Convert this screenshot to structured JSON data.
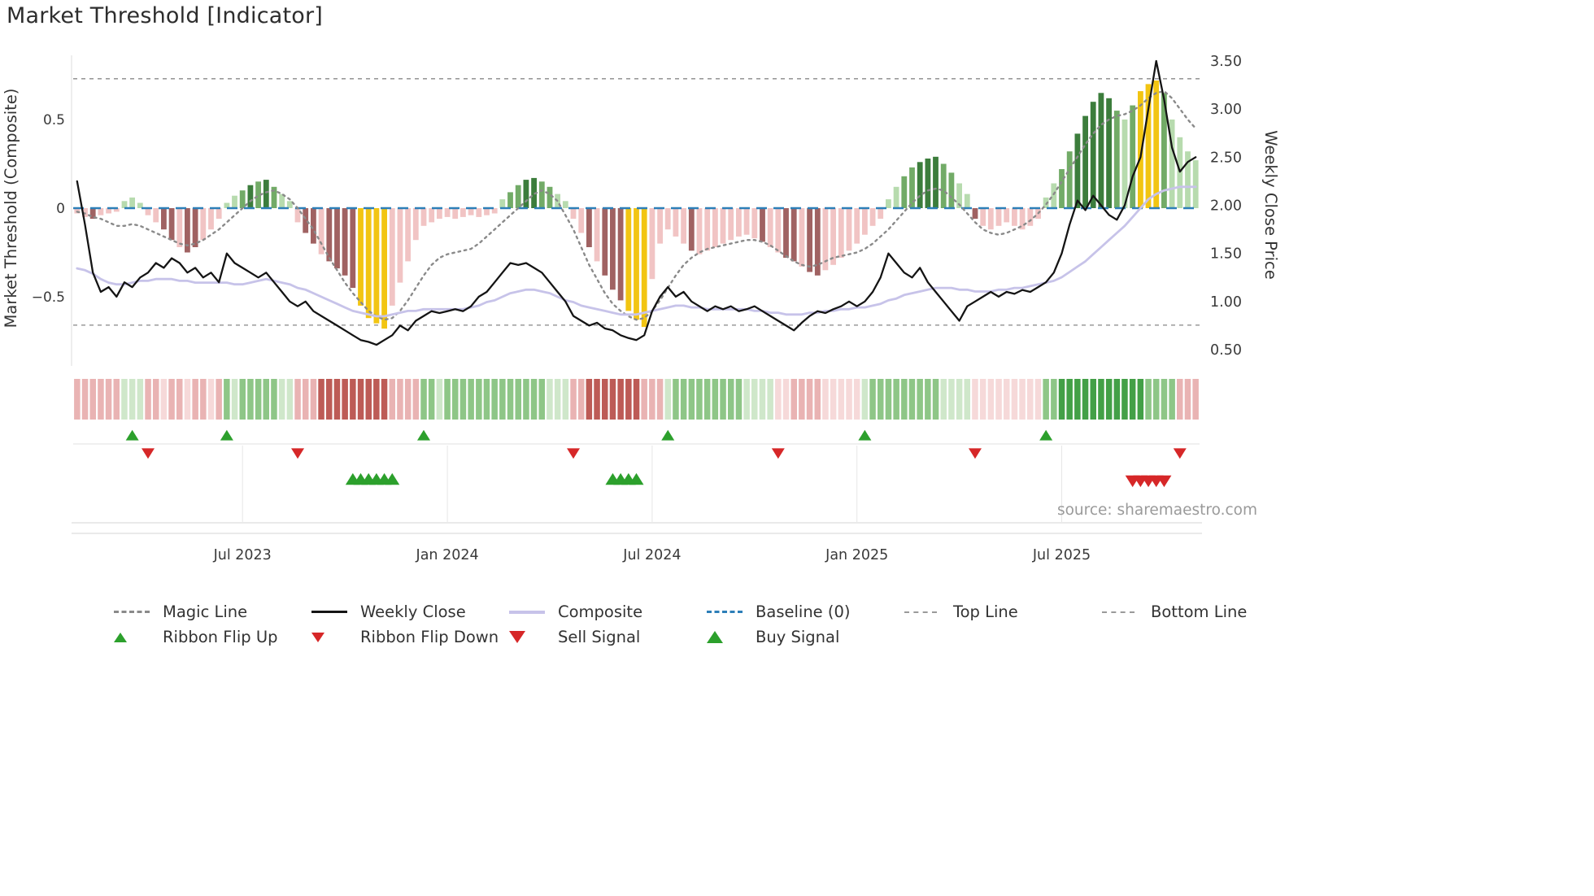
{
  "title": "Market Threshold [Indicator]",
  "source_credit": "source: sharemaestro.com",
  "axes": {
    "left_title": "Market Threshold (Composite)",
    "right_title": "Weekly Close Price"
  },
  "legend": {
    "row1": [
      {
        "label": "Magic Line"
      },
      {
        "label": "Weekly Close"
      },
      {
        "label": "Composite"
      },
      {
        "label": "Baseline (0)"
      },
      {
        "label": "Top Line"
      },
      {
        "label": "Bottom Line"
      }
    ],
    "row2": [
      {
        "label": "Ribbon Flip Up"
      },
      {
        "label": "Ribbon Flip Down"
      },
      {
        "label": "Sell Signal"
      },
      {
        "label": "Buy Signal"
      }
    ]
  },
  "chart_data": {
    "type": "bar",
    "title": "Market Threshold [Indicator]",
    "frequency": "weekly",
    "n_points": 143,
    "left_axis": {
      "label": "Market Threshold (Composite)",
      "tick_values": [
        0.5,
        0,
        -0.5
      ],
      "tick_labels": [
        "0.5",
        "0",
        "−0.5"
      ],
      "range": [
        -0.85,
        0.88
      ]
    },
    "right_axis": {
      "label": "Weekly Close Price",
      "tick_values": [
        3.5,
        3.0,
        2.5,
        2.0,
        1.5,
        1.0,
        0.5
      ],
      "tick_labels": [
        "3.50",
        "3.00",
        "2.50",
        "2.00",
        "1.50",
        "1.00",
        "0.50"
      ],
      "range": [
        0.3,
        3.55
      ]
    },
    "x_axis": {
      "tick_indices": [
        21,
        47,
        73,
        99,
        125
      ],
      "tick_labels": [
        "Jul 2023",
        "Jan 2024",
        "Jul 2024",
        "Jan 2025",
        "Jul 2025"
      ]
    },
    "reference_lines": {
      "baseline": 0,
      "top_line": 0.73,
      "bottom_line": -0.66
    },
    "bar_palette": {
      "lp": "#f1c4c4",
      "dr": "#a06262",
      "lg": "#b7dbae",
      "mg": "#72ab67",
      "dg": "#3c7d3c",
      "y": "#f2c512"
    },
    "ribbon_palette": {
      "p1": "#f6d9d9",
      "p2": "#e9b3b3",
      "p3": "#bd5b56",
      "g1": "#cfe7ca",
      "g2": "#8ec687",
      "g3": "#43a047"
    },
    "line_colors": {
      "magic": "#8a8a8a",
      "weekly_close": "#141414",
      "composite": "#c7c3e9",
      "baseline": "#2d7fb8",
      "top_bottom": "#9a9a9a"
    },
    "signal_colors": {
      "up": "#2ca02c",
      "down": "#d62728"
    },
    "bars": {
      "values": [
        -0.03,
        -0.05,
        -0.06,
        -0.04,
        -0.03,
        -0.02,
        0.04,
        0.06,
        0.03,
        -0.04,
        -0.08,
        -0.12,
        -0.18,
        -0.22,
        -0.25,
        -0.22,
        -0.18,
        -0.12,
        -0.06,
        0.03,
        0.07,
        0.1,
        0.13,
        0.15,
        0.16,
        0.12,
        0.08,
        0.04,
        -0.08,
        -0.14,
        -0.2,
        -0.26,
        -0.3,
        -0.34,
        -0.38,
        -0.45,
        -0.55,
        -0.62,
        -0.65,
        -0.68,
        -0.55,
        -0.42,
        -0.3,
        -0.18,
        -0.1,
        -0.08,
        -0.06,
        -0.05,
        -0.06,
        -0.05,
        -0.04,
        -0.05,
        -0.04,
        -0.03,
        0.05,
        0.09,
        0.13,
        0.16,
        0.17,
        0.15,
        0.12,
        0.08,
        0.04,
        -0.06,
        -0.14,
        -0.22,
        -0.3,
        -0.38,
        -0.46,
        -0.52,
        -0.58,
        -0.63,
        -0.67,
        -0.4,
        -0.2,
        -0.12,
        -0.16,
        -0.2,
        -0.24,
        -0.26,
        -0.24,
        -0.22,
        -0.2,
        -0.18,
        -0.16,
        -0.15,
        -0.17,
        -0.19,
        -0.22,
        -0.25,
        -0.28,
        -0.3,
        -0.33,
        -0.36,
        -0.38,
        -0.35,
        -0.32,
        -0.28,
        -0.24,
        -0.2,
        -0.15,
        -0.1,
        -0.06,
        0.05,
        0.12,
        0.18,
        0.23,
        0.26,
        0.28,
        0.29,
        0.25,
        0.2,
        0.14,
        0.08,
        -0.06,
        -0.1,
        -0.12,
        -0.1,
        -0.08,
        -0.1,
        -0.12,
        -0.1,
        -0.06,
        0.06,
        0.14,
        0.22,
        0.32,
        0.42,
        0.52,
        0.6,
        0.65,
        0.62,
        0.55,
        0.5,
        0.58,
        0.66,
        0.7,
        0.72,
        0.65,
        0.5,
        0.4,
        0.32,
        0.27
      ],
      "colors": [
        "lp",
        "lp",
        "dr",
        "lp",
        "lp",
        "lp",
        "lg",
        "lg",
        "lg",
        "lp",
        "lp",
        "dr",
        "dr",
        "lp",
        "dr",
        "dr",
        "lp",
        "lp",
        "lp",
        "lg",
        "lg",
        "mg",
        "dg",
        "mg",
        "dg",
        "mg",
        "lg",
        "lg",
        "lp",
        "dr",
        "dr",
        "lp",
        "dr",
        "dr",
        "dr",
        "dr",
        "y",
        "y",
        "y",
        "y",
        "lp",
        "lp",
        "lp",
        "lp",
        "lp",
        "lp",
        "lp",
        "lp",
        "lp",
        "lp",
        "lp",
        "lp",
        "lp",
        "lp",
        "lg",
        "mg",
        "mg",
        "dg",
        "dg",
        "mg",
        "mg",
        "lg",
        "lg",
        "lp",
        "lp",
        "dr",
        "lp",
        "dr",
        "dr",
        "dr",
        "y",
        "y",
        "y",
        "lp",
        "lp",
        "lp",
        "lp",
        "lp",
        "dr",
        "lp",
        "lp",
        "lp",
        "lp",
        "lp",
        "lp",
        "lp",
        "lp",
        "dr",
        "lp",
        "lp",
        "dr",
        "dr",
        "lp",
        "dr",
        "dr",
        "lp",
        "lp",
        "lp",
        "lp",
        "lp",
        "lp",
        "lp",
        "lp",
        "lg",
        "lg",
        "mg",
        "mg",
        "dg",
        "dg",
        "dg",
        "mg",
        "mg",
        "lg",
        "lg",
        "dr",
        "lp",
        "lp",
        "lp",
        "lp",
        "lp",
        "lp",
        "lp",
        "lp",
        "lg",
        "lg",
        "mg",
        "mg",
        "dg",
        "dg",
        "dg",
        "dg",
        "dg",
        "mg",
        "lg",
        "mg",
        "y",
        "y",
        "y",
        "mg",
        "lg",
        "lg",
        "lg",
        "lg"
      ]
    },
    "series": [
      {
        "name": "Weekly Close",
        "axis": "right",
        "values": [
          2.25,
          1.8,
          1.3,
          1.1,
          1.15,
          1.05,
          1.2,
          1.15,
          1.25,
          1.3,
          1.4,
          1.35,
          1.45,
          1.4,
          1.3,
          1.35,
          1.25,
          1.3,
          1.2,
          1.5,
          1.4,
          1.35,
          1.3,
          1.25,
          1.3,
          1.2,
          1.1,
          1.0,
          0.95,
          1.0,
          0.9,
          0.85,
          0.8,
          0.75,
          0.7,
          0.65,
          0.6,
          0.58,
          0.55,
          0.6,
          0.65,
          0.75,
          0.7,
          0.8,
          0.85,
          0.9,
          0.88,
          0.9,
          0.92,
          0.9,
          0.95,
          1.05,
          1.1,
          1.2,
          1.3,
          1.4,
          1.38,
          1.4,
          1.35,
          1.3,
          1.2,
          1.1,
          1.0,
          0.85,
          0.8,
          0.75,
          0.78,
          0.72,
          0.7,
          0.65,
          0.62,
          0.6,
          0.65,
          0.9,
          1.05,
          1.15,
          1.05,
          1.1,
          1.0,
          0.95,
          0.9,
          0.95,
          0.92,
          0.95,
          0.9,
          0.92,
          0.95,
          0.9,
          0.85,
          0.8,
          0.75,
          0.7,
          0.78,
          0.85,
          0.9,
          0.88,
          0.92,
          0.95,
          1.0,
          0.95,
          1.0,
          1.1,
          1.25,
          1.5,
          1.4,
          1.3,
          1.25,
          1.35,
          1.2,
          1.1,
          1.0,
          0.9,
          0.8,
          0.95,
          1.0,
          1.05,
          1.1,
          1.05,
          1.1,
          1.08,
          1.12,
          1.1,
          1.15,
          1.2,
          1.3,
          1.5,
          1.8,
          2.05,
          1.95,
          2.1,
          2.0,
          1.9,
          1.85,
          2.0,
          2.3,
          2.5,
          3.0,
          3.5,
          3.1,
          2.6,
          2.35,
          2.45,
          2.5
        ]
      },
      {
        "name": "Composite",
        "axis": "left",
        "values": [
          -0.34,
          -0.35,
          -0.37,
          -0.4,
          -0.42,
          -0.43,
          -0.43,
          -0.42,
          -0.41,
          -0.41,
          -0.4,
          -0.4,
          -0.4,
          -0.41,
          -0.41,
          -0.42,
          -0.42,
          -0.42,
          -0.42,
          -0.42,
          -0.43,
          -0.43,
          -0.42,
          -0.41,
          -0.4,
          -0.41,
          -0.42,
          -0.43,
          -0.45,
          -0.46,
          -0.48,
          -0.5,
          -0.52,
          -0.54,
          -0.56,
          -0.58,
          -0.59,
          -0.6,
          -0.61,
          -0.61,
          -0.6,
          -0.59,
          -0.58,
          -0.58,
          -0.57,
          -0.57,
          -0.57,
          -0.57,
          -0.57,
          -0.57,
          -0.56,
          -0.55,
          -0.53,
          -0.52,
          -0.5,
          -0.48,
          -0.47,
          -0.46,
          -0.46,
          -0.47,
          -0.48,
          -0.5,
          -0.52,
          -0.53,
          -0.55,
          -0.56,
          -0.57,
          -0.58,
          -0.59,
          -0.6,
          -0.6,
          -0.6,
          -0.59,
          -0.58,
          -0.57,
          -0.56,
          -0.55,
          -0.55,
          -0.56,
          -0.56,
          -0.57,
          -0.57,
          -0.57,
          -0.57,
          -0.57,
          -0.57,
          -0.58,
          -0.58,
          -0.59,
          -0.59,
          -0.6,
          -0.6,
          -0.6,
          -0.59,
          -0.59,
          -0.58,
          -0.58,
          -0.57,
          -0.57,
          -0.56,
          -0.56,
          -0.55,
          -0.54,
          -0.52,
          -0.51,
          -0.49,
          -0.48,
          -0.47,
          -0.46,
          -0.45,
          -0.45,
          -0.45,
          -0.46,
          -0.46,
          -0.47,
          -0.47,
          -0.47,
          -0.46,
          -0.46,
          -0.45,
          -0.45,
          -0.44,
          -0.43,
          -0.42,
          -0.41,
          -0.39,
          -0.36,
          -0.33,
          -0.3,
          -0.26,
          -0.22,
          -0.18,
          -0.14,
          -0.1,
          -0.05,
          0.0,
          0.05,
          0.08,
          0.1,
          0.11,
          0.12,
          0.12,
          0.12
        ]
      },
      {
        "name": "Magic Line",
        "axis": "left",
        "values": [
          -0.02,
          -0.03,
          -0.05,
          -0.06,
          -0.08,
          -0.1,
          -0.1,
          -0.09,
          -0.1,
          -0.12,
          -0.14,
          -0.16,
          -0.18,
          -0.2,
          -0.21,
          -0.2,
          -0.18,
          -0.15,
          -0.12,
          -0.08,
          -0.04,
          0.0,
          0.04,
          0.07,
          0.09,
          0.1,
          0.08,
          0.05,
          0.0,
          -0.06,
          -0.12,
          -0.2,
          -0.28,
          -0.35,
          -0.42,
          -0.48,
          -0.53,
          -0.58,
          -0.61,
          -0.63,
          -0.62,
          -0.58,
          -0.52,
          -0.45,
          -0.38,
          -0.32,
          -0.28,
          -0.26,
          -0.25,
          -0.24,
          -0.23,
          -0.2,
          -0.16,
          -0.12,
          -0.08,
          -0.04,
          0.0,
          0.04,
          0.08,
          0.1,
          0.08,
          0.04,
          -0.04,
          -0.12,
          -0.22,
          -0.32,
          -0.4,
          -0.48,
          -0.54,
          -0.58,
          -0.61,
          -0.63,
          -0.62,
          -0.58,
          -0.52,
          -0.45,
          -0.38,
          -0.32,
          -0.28,
          -0.25,
          -0.23,
          -0.22,
          -0.21,
          -0.2,
          -0.19,
          -0.18,
          -0.18,
          -0.19,
          -0.21,
          -0.24,
          -0.27,
          -0.3,
          -0.32,
          -0.33,
          -0.32,
          -0.3,
          -0.28,
          -0.27,
          -0.26,
          -0.25,
          -0.23,
          -0.2,
          -0.16,
          -0.12,
          -0.07,
          -0.02,
          0.03,
          0.07,
          0.1,
          0.11,
          0.1,
          0.06,
          0.02,
          -0.03,
          -0.08,
          -0.12,
          -0.14,
          -0.15,
          -0.14,
          -0.12,
          -0.1,
          -0.07,
          -0.03,
          0.02,
          0.08,
          0.15,
          0.22,
          0.29,
          0.36,
          0.42,
          0.47,
          0.5,
          0.52,
          0.53,
          0.55,
          0.58,
          0.62,
          0.65,
          0.66,
          0.62,
          0.56,
          0.5,
          0.45
        ]
      }
    ],
    "ribbon": [
      "p2",
      "p2",
      "p2",
      "p2",
      "p2",
      "p2",
      "g1",
      "g1",
      "g1",
      "p2",
      "p2",
      "p1",
      "p2",
      "p2",
      "p1",
      "p2",
      "p2",
      "p1",
      "p2",
      "g2",
      "g1",
      "g2",
      "g2",
      "g2",
      "g2",
      "g2",
      "g1",
      "g1",
      "p2",
      "p2",
      "p2",
      "p3",
      "p3",
      "p3",
      "p3",
      "p3",
      "p3",
      "p3",
      "p3",
      "p3",
      "p2",
      "p2",
      "p2",
      "p2",
      "g2",
      "g2",
      "g1",
      "g2",
      "g2",
      "g2",
      "g2",
      "g2",
      "g2",
      "g2",
      "g2",
      "g2",
      "g2",
      "g2",
      "g2",
      "g2",
      "g1",
      "g1",
      "g1",
      "p2",
      "p2",
      "p3",
      "p3",
      "p3",
      "p3",
      "p3",
      "p3",
      "p3",
      "p2",
      "p2",
      "p2",
      "g1",
      "g2",
      "g2",
      "g2",
      "g2",
      "g2",
      "g2",
      "g2",
      "g2",
      "g2",
      "g1",
      "g1",
      "g1",
      "g1",
      "p1",
      "p1",
      "p2",
      "p2",
      "p2",
      "p2",
      "p1",
      "p1",
      "p1",
      "p1",
      "p1",
      "g1",
      "g2",
      "g2",
      "g2",
      "g2",
      "g2",
      "g2",
      "g2",
      "g2",
      "g2",
      "g1",
      "g1",
      "g1",
      "g1",
      "p1",
      "p1",
      "p1",
      "p1",
      "p1",
      "p1",
      "p1",
      "p1",
      "p1",
      "g2",
      "g2",
      "g3",
      "g3",
      "g3",
      "g3",
      "g3",
      "g3",
      "g3",
      "g3",
      "g3",
      "g3",
      "g3",
      "g2",
      "g2",
      "g2",
      "g2",
      "p2",
      "p2",
      "p2"
    ],
    "signals": {
      "ribbon_flip_up": [
        7,
        19,
        44,
        75,
        100,
        123
      ],
      "ribbon_flip_down": [
        9,
        28,
        63,
        89,
        114,
        140
      ],
      "buy": [
        35,
        36,
        37,
        38,
        39,
        40,
        68,
        69,
        70,
        71
      ],
      "sell": [
        134,
        135,
        136,
        137,
        138
      ]
    }
  }
}
